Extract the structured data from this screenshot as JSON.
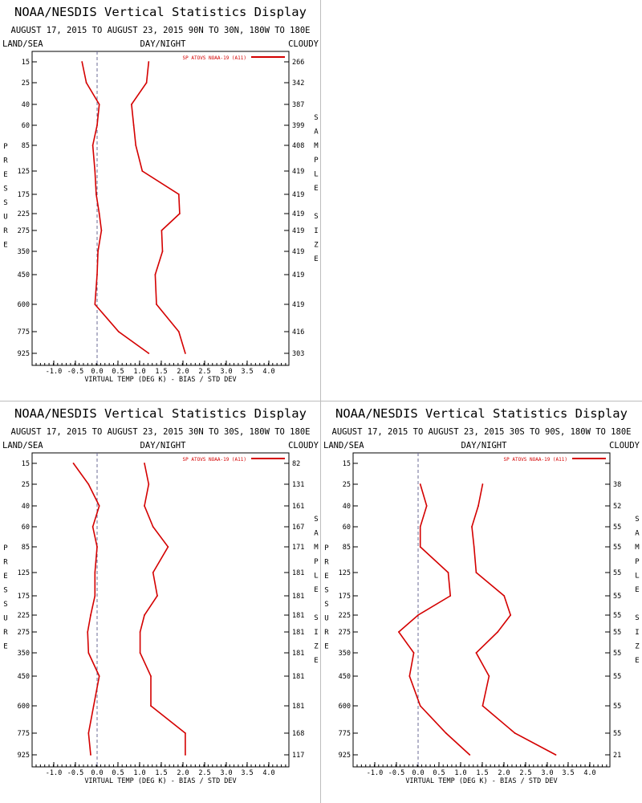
{
  "colors": {
    "series": "#d40000",
    "zero_line": "#6b6b96",
    "frame": "#000000",
    "divider": "#bdbdbd"
  },
  "common": {
    "title": "NOAA/NESDIS Vertical Statistics Display",
    "left_corner": "LAND/SEA",
    "center_label": "DAY/NIGHT",
    "right_corner": "CLOUDY",
    "left_axis_letters": [
      "P",
      "R",
      "E",
      "S",
      "S",
      "U",
      "R",
      "E"
    ],
    "right_axis_letters": [
      "S",
      "A",
      "M",
      "P",
      "L",
      "E",
      "",
      "S",
      "I",
      "Z",
      "E"
    ],
    "xlabel": "VIRTUAL TEMP (DEG K) - BIAS / STD DEV",
    "legend": "SP ATOVS NOAA-19 (A11)"
  },
  "chart_data": [
    {
      "type": "line",
      "subtitle": "AUGUST 17, 2015 TO AUGUST 23, 2015  90N TO 30N, 180W TO 180E",
      "pressure_levels": [
        15,
        25,
        40,
        60,
        85,
        125,
        175,
        225,
        275,
        350,
        450,
        600,
        775,
        925
      ],
      "xlim": [
        -1.5,
        4.5
      ],
      "xticks": [
        "-1.0",
        "-0.5",
        "0.0",
        "0.5",
        "1.0",
        "1.5",
        "2.0",
        "2.5",
        "3.0",
        "3.5",
        "4.0"
      ],
      "series": [
        {
          "name": "bias",
          "values": [
            -0.35,
            -0.25,
            0.05,
            0.0,
            -0.1,
            -0.05,
            -0.02,
            0.05,
            0.1,
            0.02,
            0.0,
            -0.05,
            0.5,
            1.2
          ]
        },
        {
          "name": "std_dev",
          "values": [
            1.2,
            1.15,
            0.8,
            0.85,
            0.9,
            1.05,
            1.9,
            1.92,
            1.5,
            1.52,
            1.35,
            1.38,
            1.9,
            2.05
          ]
        }
      ],
      "sample_size": [
        "266",
        "342",
        "387",
        "399",
        "408",
        "419",
        "419",
        "419",
        "419",
        "419",
        "419",
        "419",
        "416",
        "303"
      ]
    },
    {
      "type": "line",
      "subtitle": "AUGUST 17, 2015 TO AUGUST 23, 2015  30N TO 30S, 180W TO 180E",
      "pressure_levels": [
        15,
        25,
        40,
        60,
        85,
        125,
        175,
        225,
        275,
        350,
        450,
        600,
        775,
        925
      ],
      "xlim": [
        -1.5,
        4.5
      ],
      "xticks": [
        "-1.0",
        "-0.5",
        "0.0",
        "0.5",
        "1.0",
        "1.5",
        "2.0",
        "2.5",
        "3.0",
        "3.5",
        "4.0"
      ],
      "series": [
        {
          "name": "bias",
          "values": [
            -0.55,
            -0.2,
            0.05,
            -0.1,
            0.0,
            -0.05,
            -0.05,
            -0.15,
            -0.22,
            -0.2,
            0.05,
            -0.08,
            -0.2,
            -0.15
          ]
        },
        {
          "name": "std_dev",
          "values": [
            1.1,
            1.2,
            1.1,
            1.3,
            1.65,
            1.3,
            1.4,
            1.1,
            1.0,
            1.0,
            1.25,
            1.25,
            2.05,
            2.05
          ]
        }
      ],
      "sample_size": [
        "82",
        "131",
        "161",
        "167",
        "171",
        "181",
        "181",
        "181",
        "181",
        "181",
        "181",
        "181",
        "168",
        "117"
      ]
    },
    {
      "type": "line",
      "subtitle": "AUGUST 17, 2015 TO AUGUST 23, 2015  30S TO 90S, 180W TO 180E",
      "pressure_levels": [
        15,
        25,
        40,
        60,
        85,
        125,
        175,
        225,
        275,
        350,
        450,
        600,
        775,
        925
      ],
      "xlim": [
        -1.5,
        4.5
      ],
      "xticks": [
        "-1.0",
        "-0.5",
        "0.0",
        "0.5",
        "1.0",
        "1.5",
        "2.0",
        "2.5",
        "3.0",
        "3.5",
        "4.0"
      ],
      "series": [
        {
          "name": "bias",
          "values": [
            null,
            0.05,
            0.2,
            0.05,
            0.05,
            0.7,
            0.75,
            0.0,
            -0.45,
            -0.1,
            -0.2,
            0.05,
            0.65,
            1.2
          ]
        },
        {
          "name": "std_dev",
          "values": [
            null,
            1.5,
            1.4,
            1.25,
            1.3,
            1.35,
            2.0,
            2.15,
            1.85,
            1.35,
            1.65,
            1.5,
            2.25,
            3.2
          ]
        }
      ],
      "sample_size": [
        "",
        "38",
        "52",
        "55",
        "55",
        "55",
        "55",
        "55",
        "55",
        "55",
        "55",
        "55",
        "55",
        "21"
      ]
    }
  ]
}
